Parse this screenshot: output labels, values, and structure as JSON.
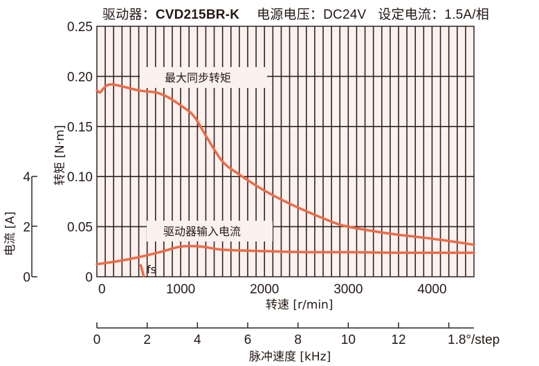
{
  "header": {
    "driver_label": "驱动器：",
    "driver_model": "CVD215BR-K",
    "voltage_label": "电源电压：",
    "voltage_value": "DC24V",
    "current_label": "设定电流：",
    "current_value": "1.5A/相"
  },
  "labels": {
    "torque_curve": "最大同步转矩",
    "current_curve": "驱动器输入电流",
    "fs": "fs",
    "x_axis_title": "转速 [r/min]",
    "pulse_axis_title": "脉冲速度 [kHz]",
    "pulse_axis_unit": "1.8°/step",
    "torque_axis_title": "转矩 [N·m]",
    "current_axis_title": "电流 [A]"
  },
  "colors": {
    "curve": "#EE6A45",
    "plot_bg": "#FDF1EE",
    "grid": "#2B2422"
  },
  "chart_data": {
    "type": "line",
    "title": "驱动器：CVD215BR-K  电源电压：DC24V  设定电流：1.5A/相",
    "xlabel": "转速 [r/min]",
    "xlim": [
      0,
      4500
    ],
    "x_ticks": [
      0,
      1000,
      2000,
      3000,
      4000
    ],
    "ylabel": "转矩 [N·m]",
    "ylim": [
      0,
      0.25
    ],
    "y_ticks": [
      0,
      0.05,
      0.1,
      0.15,
      0.2,
      0.25
    ],
    "y2label": "电流 [A]",
    "y2lim": [
      0,
      4
    ],
    "y2_ticks": [
      0,
      2,
      4
    ],
    "secondary_x": {
      "label": "脉冲速度 [kHz]",
      "unit_note": "1.8°/step",
      "ticks": [
        0,
        2,
        4,
        6,
        8,
        10,
        12,
        14
      ],
      "tick_labels": [
        "0",
        "2",
        "4",
        "6",
        "8",
        "10",
        "12",
        ""
      ]
    },
    "grid": true,
    "series": [
      {
        "name": "最大同步转矩",
        "axis": "torque",
        "x": [
          0,
          40,
          80,
          180,
          500,
          700,
          830,
          1000,
          1160,
          1320,
          1500,
          1700,
          2000,
          2350,
          2800,
          3000,
          3500,
          4000,
          4500
        ],
        "y": [
          0.186,
          0.184,
          0.188,
          0.192,
          0.186,
          0.184,
          0.18,
          0.171,
          0.16,
          0.138,
          0.115,
          0.102,
          0.086,
          0.071,
          0.055,
          0.05,
          0.043,
          0.038,
          0.032
        ]
      },
      {
        "name": "驱动器输入电流",
        "axis": "current",
        "x": [
          0,
          250,
          500,
          750,
          1000,
          1250,
          1500,
          2000,
          2500,
          3000,
          3500,
          4000,
          4500
        ],
        "y": [
          0.5,
          0.62,
          0.78,
          0.98,
          1.2,
          1.2,
          1.08,
          1.02,
          0.98,
          0.98,
          0.96,
          0.96,
          0.96
        ]
      }
    ],
    "annotations": [
      {
        "text": "fs",
        "x": 550,
        "note": "self-start frequency marker"
      }
    ]
  }
}
